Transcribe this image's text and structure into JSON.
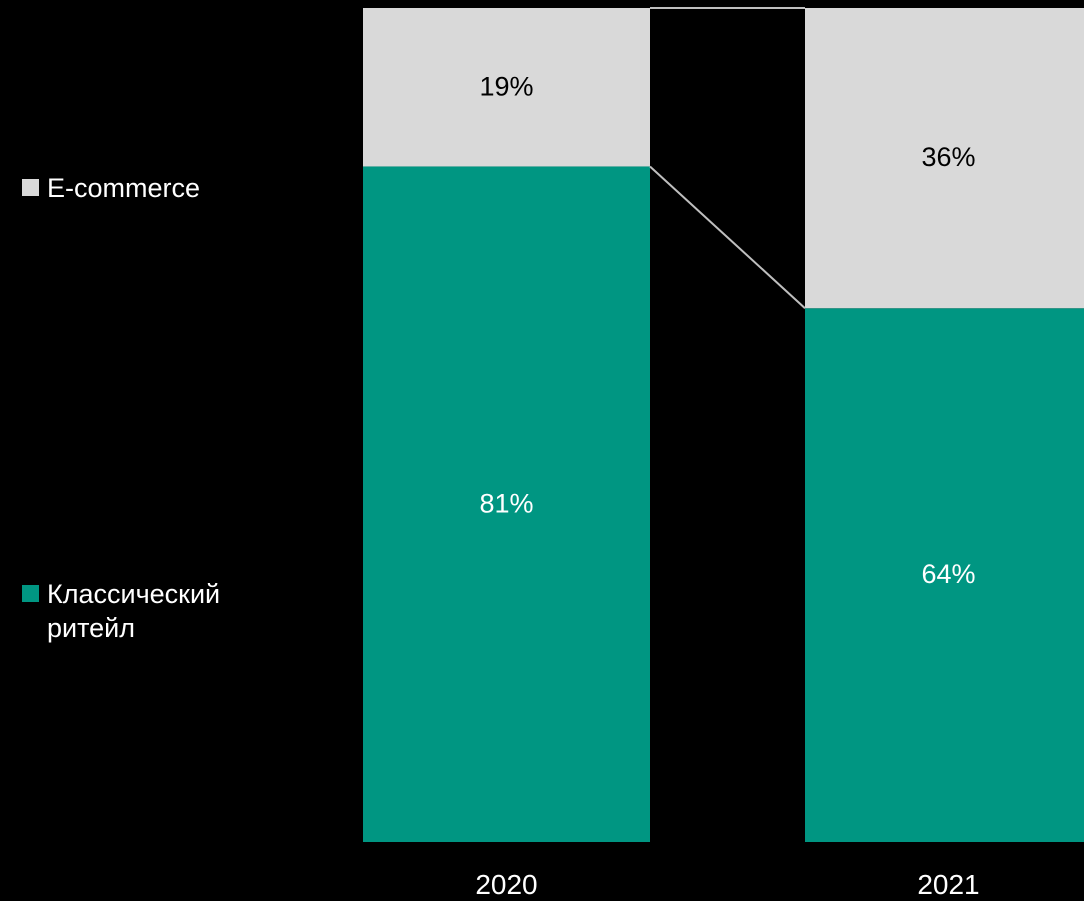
{
  "chart_data": {
    "type": "bar",
    "stacked": true,
    "categories": [
      "2020",
      "2021"
    ],
    "series": [
      {
        "name": "Классический ритейл",
        "values": [
          81,
          64
        ],
        "labels": [
          "81%",
          "64%"
        ],
        "color": "#009682"
      },
      {
        "name": "E-commerce",
        "values": [
          19,
          36
        ],
        "labels": [
          "19%",
          "36%"
        ],
        "color": "#d9d9d9"
      }
    ],
    "ylim": [
      0,
      100
    ],
    "legend_position": "left",
    "grid": false,
    "connector_lines": true,
    "title": "",
    "xlabel": "",
    "ylabel": ""
  },
  "legend": {
    "items": [
      {
        "label": "E-commerce",
        "color": "#d9d9d9"
      },
      {
        "label": "Классический ритейл",
        "color": "#009682"
      }
    ]
  }
}
